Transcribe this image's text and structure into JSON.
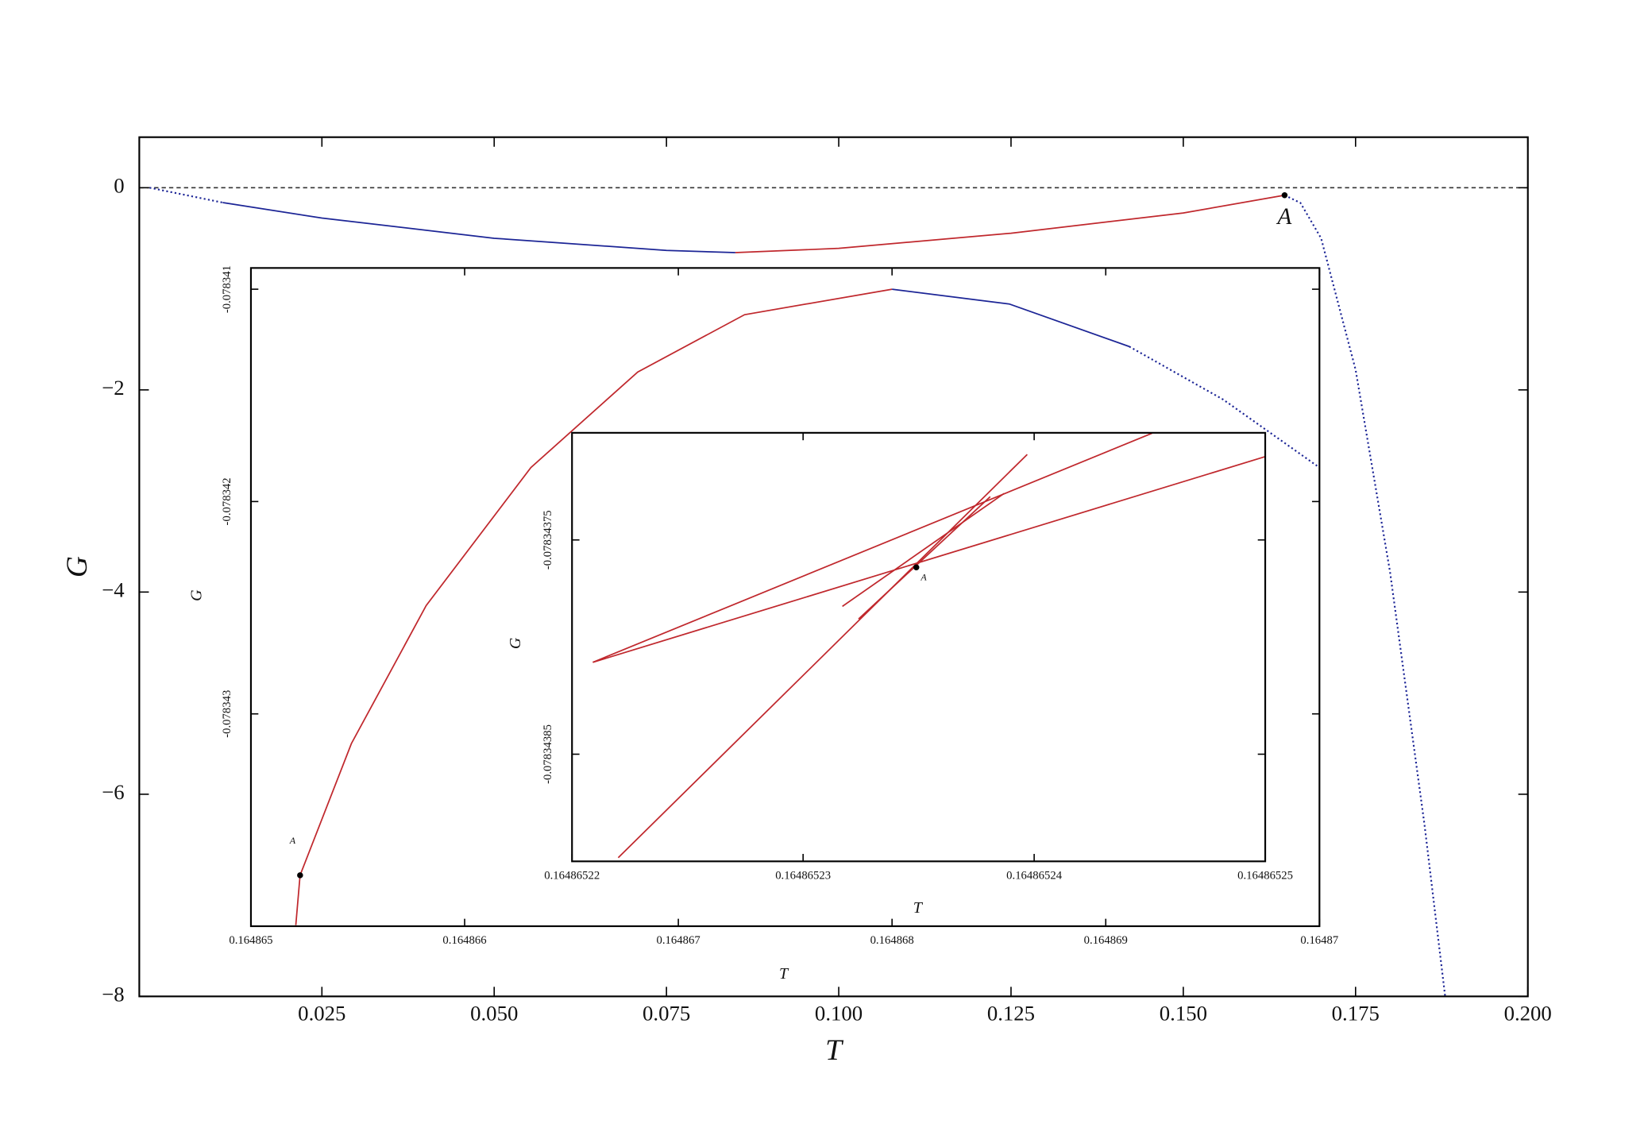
{
  "chart_data": [
    {
      "type": "line",
      "xlabel": "T",
      "ylabel": "G",
      "xlim": [
        -0.0015,
        0.2
      ],
      "ylim": [
        -8,
        0.5
      ],
      "xticks": [
        0.025,
        {
          "value": 0.05,
          "label": "0.050"
        },
        0.075,
        {
          "value": 0.1,
          "label": "0.100"
        },
        0.125,
        {
          "value": 0.15,
          "label": "0.150"
        },
        0.175,
        {
          "value": 0.2,
          "label": "0.200"
        }
      ],
      "yticks": [
        {
          "value": -8,
          "label": "−8"
        },
        {
          "value": -6,
          "label": "−6"
        },
        {
          "value": -4,
          "label": "−4"
        },
        {
          "value": -2,
          "label": "−2"
        },
        0
      ],
      "hline": {
        "value": 0,
        "style": "dashed",
        "color": "#333333"
      },
      "series": [
        {
          "color": "#1c2596",
          "style": "dotted",
          "x": [
            0,
            0.0106
          ],
          "values": [
            0,
            -0.147
          ]
        },
        {
          "color": "#1c2596",
          "style": "solid",
          "x": [
            0.0106,
            0.025,
            0.05,
            0.075,
            0.085
          ],
          "values": [
            -0.147,
            -0.3,
            -0.5,
            -0.62,
            -0.642
          ]
        },
        {
          "color": "#c0282d",
          "style": "solid",
          "x": [
            0.085,
            0.1,
            0.125,
            0.15,
            0.1647
          ],
          "values": [
            -0.642,
            -0.6,
            -0.45,
            -0.25,
            -0.074
          ]
        },
        {
          "color": "#1c2596",
          "style": "dotted",
          "x": [
            0.1647,
            0.167,
            0.17,
            0.175,
            0.18,
            0.185,
            0.188
          ],
          "values": [
            -0.074,
            -0.15,
            -0.5,
            -1.8,
            -3.8,
            -6.3,
            -8
          ]
        }
      ],
      "points": [
        {
          "label": "A",
          "x": 0.1647,
          "y": -0.074
        }
      ]
    },
    {
      "type": "line",
      "xlabel": "T",
      "ylabel": "G",
      "xlim": [
        0.164865,
        0.16487
      ],
      "ylim": [
        -0.078344,
        -0.0783409
      ],
      "xticks": [
        0.164865,
        0.164866,
        0.164867,
        0.164868,
        0.164869,
        0.16487
      ],
      "yticks": [
        -0.078343,
        -0.078342,
        -0.078341
      ],
      "series": [
        {
          "color": "#c0282d",
          "style": "solid",
          "x": [
            0.16486521,
            0.16486523,
            0.16486547,
            0.16486582,
            0.16486631,
            0.16486681,
            0.16486731,
            0.164868
          ],
          "values": [
            -0.078343995,
            -0.07834376,
            -0.07834314,
            -0.07834249,
            -0.07834184,
            -0.07834139,
            -0.07834112,
            -0.078341
          ]
        },
        {
          "color": "#1c2596",
          "style": "solid",
          "x": [
            0.164868,
            0.16486855,
            0.16486911
          ],
          "values": [
            -0.078341,
            -0.07834107,
            -0.07834127
          ]
        },
        {
          "color": "#1c2596",
          "style": "dotted",
          "x": [
            0.16486911,
            0.16486955,
            0.16487
          ],
          "values": [
            -0.07834127,
            -0.07834152,
            -0.07834184
          ]
        }
      ],
      "points": [
        {
          "label": "A",
          "x": 0.16486523,
          "y": -0.07834376
        }
      ]
    },
    {
      "type": "line",
      "xlabel": "T",
      "ylabel": "G",
      "xlim": [
        0.16486522,
        0.16486525
      ],
      "ylim": [
        -0.0783439,
        -0.0783437
      ],
      "xticks": [
        0.16486522,
        0.16486523,
        0.16486524,
        0.16486525
      ],
      "yticks": [
        -0.07834385,
        -0.07834375
      ],
      "series": [
        {
          "color": "#c0282d",
          "style": "solid",
          "x": [
            0.1648652209,
            0.16486525
          ],
          "values": [
            -0.0783438071,
            -0.0783437111
          ]
        },
        {
          "color": "#c0282d",
          "style": "solid",
          "x": [
            0.1648652209,
            0.1648652451
          ],
          "values": [
            -0.0783438071,
            -0.0783437002
          ]
        },
        {
          "color": "#c0282d",
          "style": "solid",
          "x": [
            0.164865222,
            0.1648652397
          ],
          "values": [
            -0.0783438983,
            -0.0783437101
          ]
        },
        {
          "color": "#c0282d",
          "style": "solid",
          "x": [
            0.1648652317,
            0.1648652387
          ],
          "values": [
            -0.078343781,
            -0.0783437283
          ]
        },
        {
          "color": "#c0282d",
          "style": "solid",
          "x": [
            0.1648652324,
            0.1648652381
          ],
          "values": [
            -0.0783437869,
            -0.0783437298
          ]
        }
      ],
      "points": [
        {
          "label": "A",
          "x": 0.1648652349,
          "y": -0.0783437628
        }
      ]
    }
  ]
}
